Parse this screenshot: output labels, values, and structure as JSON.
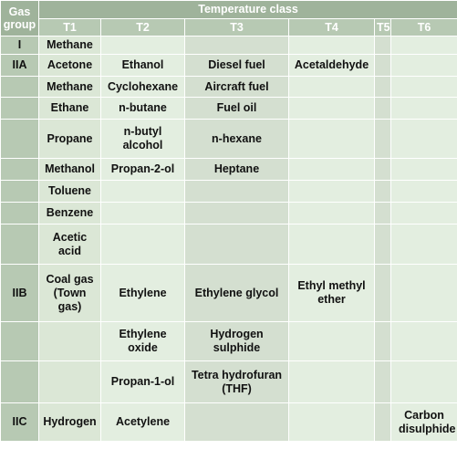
{
  "header": {
    "gas_group": "Gas group",
    "temperature_class": "Temperature class",
    "classes": [
      "T1",
      "T2",
      "T3",
      "T4",
      "T5",
      "T6"
    ]
  },
  "rows": [
    {
      "group": "I",
      "cells": [
        "Methane",
        "",
        "",
        "",
        "",
        ""
      ]
    },
    {
      "group": "IIA",
      "cells": [
        "Acetone",
        "Ethanol",
        "Diesel fuel",
        "Acetaldehyde",
        "",
        ""
      ]
    },
    {
      "group": "",
      "cells": [
        "Methane",
        "Cyclohexane",
        "Aircraft fuel",
        "",
        "",
        ""
      ]
    },
    {
      "group": "",
      "cells": [
        "Ethane",
        "n-butane",
        "Fuel oil",
        "",
        "",
        ""
      ]
    },
    {
      "group": "",
      "cells": [
        "Propane",
        "n-butyl alcohol",
        "n-hexane",
        "",
        "",
        ""
      ]
    },
    {
      "group": "",
      "cells": [
        "Methanol",
        "Propan-2-ol",
        "Heptane",
        "",
        "",
        ""
      ]
    },
    {
      "group": "",
      "cells": [
        "Toluene",
        "",
        "",
        "",
        "",
        ""
      ]
    },
    {
      "group": "",
      "cells": [
        "Benzene",
        "",
        "",
        "",
        "",
        ""
      ]
    },
    {
      "group": "",
      "cells": [
        "Acetic acid",
        "",
        "",
        "",
        "",
        ""
      ]
    },
    {
      "group": "IIB",
      "cells": [
        "Coal gas (Town gas)",
        "Ethylene",
        "Ethylene glycol",
        "Ethyl methyl ether",
        "",
        ""
      ]
    },
    {
      "group": "",
      "cells": [
        "",
        "Ethylene oxide",
        "Hydrogen sulphide",
        "",
        "",
        ""
      ]
    },
    {
      "group": "",
      "cells": [
        "",
        "Propan-1-ol",
        "Tetra hydrofuran (THF)",
        "",
        "",
        ""
      ]
    },
    {
      "group": "IIC",
      "cells": [
        "Hydrogen",
        "Acetylene",
        "",
        "",
        "",
        "Carbon disulphide"
      ]
    }
  ]
}
